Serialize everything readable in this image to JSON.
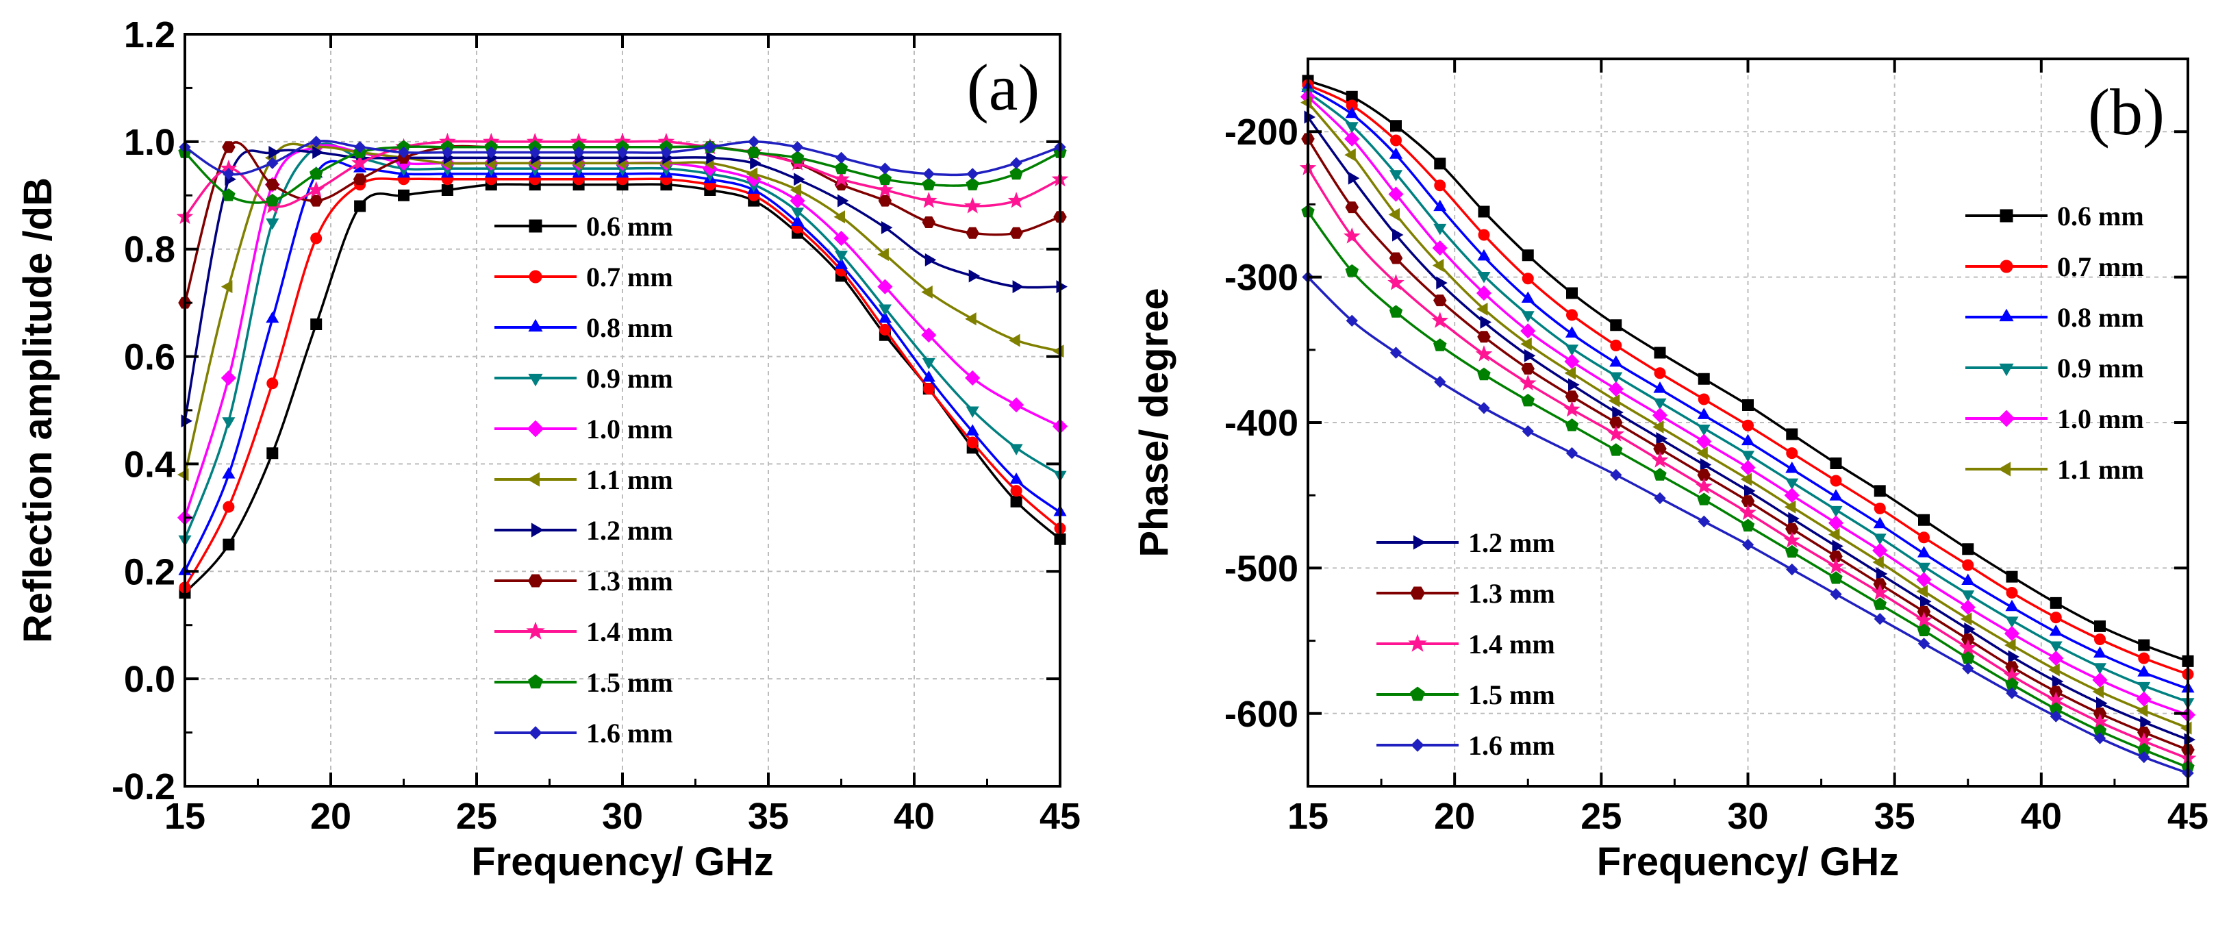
{
  "chart_data": [
    {
      "type": "line",
      "panel_label": "(a)",
      "xlabel": "Frequency/ GHz",
      "ylabel": "Reflection amplitude /dB",
      "xlim": [
        15,
        45
      ],
      "ylim": [
        -0.2,
        1.2
      ],
      "xticks": [
        15,
        20,
        25,
        30,
        35,
        40,
        45
      ],
      "xtick_labels": [
        "15",
        "20",
        "25",
        "30",
        "35",
        "40",
        "45"
      ],
      "yticks": [
        -0.2,
        0,
        0.2,
        0.4,
        0.6,
        0.8,
        1.0,
        1.2
      ],
      "ytick_labels": [
        "-0.2",
        "0.0",
        "0.2",
        "0.4",
        "0.6",
        "0.8",
        "1.0",
        "1.2"
      ],
      "grid": true,
      "legend_position": "center",
      "x": [
        15,
        16.5,
        18,
        19.5,
        21,
        22.5,
        24,
        25.5,
        27,
        28.5,
        30,
        31.5,
        33,
        34.5,
        36,
        37.5,
        39,
        40.5,
        42,
        43.5,
        45
      ],
      "series": [
        {
          "name": "0.6 mm",
          "color": "#000000",
          "marker": "square",
          "values": [
            0.16,
            0.25,
            0.42,
            0.66,
            0.88,
            0.9,
            0.91,
            0.92,
            0.92,
            0.92,
            0.92,
            0.92,
            0.91,
            0.89,
            0.83,
            0.75,
            0.64,
            0.54,
            0.43,
            0.33,
            0.26
          ]
        },
        {
          "name": "0.7 mm",
          "color": "#ff0000",
          "marker": "circle",
          "values": [
            0.17,
            0.32,
            0.55,
            0.82,
            0.92,
            0.93,
            0.93,
            0.93,
            0.93,
            0.93,
            0.93,
            0.93,
            0.92,
            0.9,
            0.84,
            0.76,
            0.65,
            0.54,
            0.44,
            0.35,
            0.28
          ]
        },
        {
          "name": "0.8 mm",
          "color": "#0000ff",
          "marker": "triangle-up",
          "values": [
            0.2,
            0.38,
            0.67,
            0.94,
            0.95,
            0.94,
            0.94,
            0.94,
            0.94,
            0.94,
            0.94,
            0.94,
            0.93,
            0.91,
            0.85,
            0.77,
            0.67,
            0.56,
            0.46,
            0.37,
            0.31
          ]
        },
        {
          "name": "0.9 mm",
          "color": "#008080",
          "marker": "triangle-down",
          "values": [
            0.26,
            0.48,
            0.85,
            0.99,
            0.97,
            0.95,
            0.95,
            0.95,
            0.95,
            0.95,
            0.95,
            0.95,
            0.94,
            0.92,
            0.87,
            0.79,
            0.69,
            0.59,
            0.5,
            0.43,
            0.38
          ]
        },
        {
          "name": "1.0 mm",
          "color": "#ff00ff",
          "marker": "diamond",
          "values": [
            0.3,
            0.56,
            0.92,
            0.99,
            0.98,
            0.96,
            0.96,
            0.96,
            0.96,
            0.96,
            0.96,
            0.96,
            0.95,
            0.93,
            0.89,
            0.82,
            0.73,
            0.64,
            0.56,
            0.51,
            0.47
          ]
        },
        {
          "name": "1.1 mm",
          "color": "#808000",
          "marker": "triangle-left",
          "values": [
            0.38,
            0.73,
            0.97,
            0.99,
            0.98,
            0.97,
            0.96,
            0.96,
            0.96,
            0.96,
            0.96,
            0.96,
            0.96,
            0.94,
            0.91,
            0.86,
            0.79,
            0.72,
            0.67,
            0.63,
            0.61
          ]
        },
        {
          "name": "1.2 mm",
          "color": "#000080",
          "marker": "triangle-right",
          "values": [
            0.48,
            0.93,
            0.98,
            0.98,
            0.97,
            0.97,
            0.97,
            0.97,
            0.97,
            0.97,
            0.97,
            0.97,
            0.97,
            0.96,
            0.93,
            0.89,
            0.84,
            0.78,
            0.75,
            0.73,
            0.73
          ]
        },
        {
          "name": "1.3 mm",
          "color": "#800000",
          "marker": "hexagon",
          "values": [
            0.7,
            0.99,
            0.92,
            0.89,
            0.93,
            0.97,
            0.99,
            0.99,
            0.99,
            0.99,
            0.99,
            0.99,
            0.99,
            0.98,
            0.96,
            0.92,
            0.89,
            0.85,
            0.83,
            0.83,
            0.86
          ]
        },
        {
          "name": "1.4 mm",
          "color": "#ff1493",
          "marker": "star",
          "values": [
            0.86,
            0.95,
            0.88,
            0.91,
            0.96,
            0.99,
            1.0,
            1.0,
            1.0,
            1.0,
            1.0,
            1.0,
            0.99,
            0.98,
            0.96,
            0.93,
            0.91,
            0.89,
            0.88,
            0.89,
            0.93
          ]
        },
        {
          "name": "1.5 mm",
          "color": "#008000",
          "marker": "pentagon",
          "values": [
            0.98,
            0.9,
            0.89,
            0.94,
            0.98,
            0.99,
            0.99,
            0.99,
            0.99,
            0.99,
            0.99,
            0.99,
            0.99,
            0.98,
            0.97,
            0.95,
            0.93,
            0.92,
            0.92,
            0.94,
            0.98
          ]
        },
        {
          "name": "1.6 mm",
          "color": "#2020c0",
          "marker": "diamond-small",
          "values": [
            0.99,
            0.94,
            0.96,
            1.0,
            0.99,
            0.98,
            0.98,
            0.98,
            0.98,
            0.98,
            0.98,
            0.98,
            0.99,
            1.0,
            0.99,
            0.97,
            0.95,
            0.94,
            0.94,
            0.96,
            0.99
          ]
        }
      ]
    },
    {
      "type": "line",
      "panel_label": "(b)",
      "xlabel": "Frequency/ GHz",
      "ylabel": "Phase/ degree",
      "xlim": [
        15,
        45
      ],
      "ylim": [
        -650,
        -150
      ],
      "xticks": [
        15,
        20,
        25,
        30,
        35,
        40,
        45
      ],
      "xtick_labels": [
        "15",
        "20",
        "25",
        "30",
        "35",
        "40",
        "45"
      ],
      "yticks": [
        -600,
        -500,
        -400,
        -300,
        -200
      ],
      "ytick_labels": [
        "-600",
        "-500",
        "-400",
        "-300",
        "-200"
      ],
      "grid": true,
      "legend_position": "top-right and lower-left",
      "x": [
        15,
        16.5,
        18,
        19.5,
        21,
        22.5,
        24,
        25.5,
        27,
        28.5,
        30,
        31.5,
        33,
        34.5,
        36,
        37.5,
        39,
        40.5,
        42,
        43.5,
        45
      ],
      "series": [
        {
          "name": "0.6 mm",
          "color": "#000000",
          "marker": "square",
          "values": [
            -165,
            -176,
            -196,
            -222,
            -255,
            -285,
            -311,
            -333,
            -352,
            -370,
            -388,
            -408,
            -428,
            -447,
            -467,
            -487,
            -506,
            -524,
            -540,
            -553,
            -564
          ]
        },
        {
          "name": "0.7 mm",
          "color": "#ff0000",
          "marker": "circle",
          "values": [
            -168,
            -182,
            -206,
            -237,
            -271,
            -301,
            -326,
            -347,
            -366,
            -384,
            -402,
            -421,
            -440,
            -459,
            -479,
            -498,
            -517,
            -534,
            -549,
            -562,
            -573
          ]
        },
        {
          "name": "0.8 mm",
          "color": "#0000ff",
          "marker": "triangle-up",
          "values": [
            -170,
            -188,
            -216,
            -252,
            -286,
            -315,
            -339,
            -359,
            -377,
            -395,
            -413,
            -432,
            -451,
            -470,
            -490,
            -509,
            -527,
            -544,
            -559,
            -572,
            -583
          ]
        },
        {
          "name": "0.9 mm",
          "color": "#008080",
          "marker": "triangle-down",
          "values": [
            -173,
            -196,
            -229,
            -266,
            -299,
            -326,
            -349,
            -368,
            -386,
            -404,
            -422,
            -441,
            -460,
            -479,
            -499,
            -518,
            -536,
            -553,
            -568,
            -581,
            -592
          ]
        },
        {
          "name": "1.0 mm",
          "color": "#ff00ff",
          "marker": "diamond",
          "values": [
            -176,
            -205,
            -243,
            -280,
            -311,
            -337,
            -358,
            -377,
            -395,
            -413,
            -431,
            -450,
            -469,
            -488,
            -508,
            -527,
            -545,
            -562,
            -577,
            -590,
            -601
          ]
        },
        {
          "name": "1.1 mm",
          "color": "#808000",
          "marker": "triangle-left",
          "values": [
            -180,
            -216,
            -257,
            -292,
            -322,
            -346,
            -366,
            -385,
            -403,
            -421,
            -439,
            -458,
            -477,
            -496,
            -516,
            -535,
            -553,
            -570,
            -585,
            -598,
            -610
          ]
        },
        {
          "name": "1.2 mm",
          "color": "#000080",
          "marker": "triangle-right",
          "values": [
            -190,
            -232,
            -271,
            -304,
            -331,
            -354,
            -374,
            -393,
            -411,
            -429,
            -447,
            -466,
            -485,
            -504,
            -523,
            -542,
            -561,
            -578,
            -593,
            -606,
            -618
          ]
        },
        {
          "name": "1.3 mm",
          "color": "#800000",
          "marker": "hexagon",
          "values": [
            -205,
            -252,
            -287,
            -316,
            -341,
            -363,
            -382,
            -400,
            -418,
            -436,
            -454,
            -473,
            -492,
            -511,
            -530,
            -549,
            -568,
            -585,
            -600,
            -613,
            -625
          ]
        },
        {
          "name": "1.4 mm",
          "color": "#ff1493",
          "marker": "star",
          "values": [
            -225,
            -272,
            -304,
            -330,
            -353,
            -373,
            -391,
            -408,
            -426,
            -444,
            -462,
            -481,
            -499,
            -517,
            -536,
            -555,
            -574,
            -591,
            -606,
            -619,
            -631
          ]
        },
        {
          "name": "1.5 mm",
          "color": "#008000",
          "marker": "pentagon",
          "values": [
            -255,
            -296,
            -324,
            -347,
            -367,
            -385,
            -402,
            -419,
            -436,
            -453,
            -471,
            -489,
            -507,
            -525,
            -543,
            -562,
            -580,
            -597,
            -612,
            -625,
            -637
          ]
        },
        {
          "name": "1.6 mm",
          "color": "#2020c0",
          "marker": "diamond-small",
          "values": [
            -300,
            -330,
            -352,
            -372,
            -390,
            -406,
            -421,
            -436,
            -452,
            -468,
            -484,
            -501,
            -518,
            -535,
            -552,
            -569,
            -586,
            -602,
            -617,
            -630,
            -641
          ]
        }
      ]
    }
  ]
}
